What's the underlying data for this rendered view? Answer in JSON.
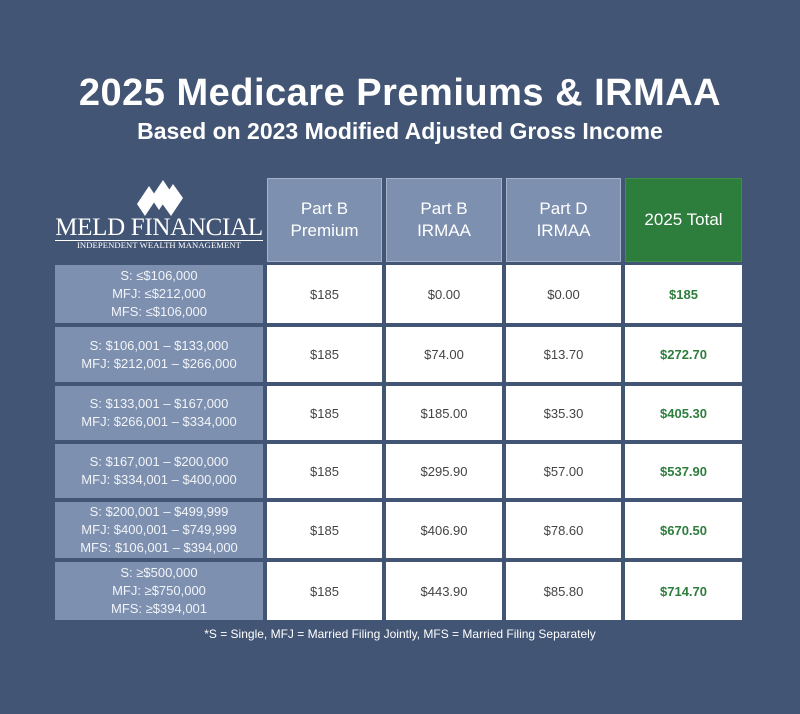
{
  "title": "2025 Medicare Premiums & IRMAA",
  "subtitle": "Based on 2023 Modified Adjusted Gross Income",
  "logo": {
    "name": "MELD FINANCIAL",
    "tagline": "INDEPENDENT WEALTH MANAGEMENT"
  },
  "colors": {
    "background": "#435574",
    "header": "#7d90b0",
    "total_header": "#2d7d3c",
    "total_text": "#2d7d3c"
  },
  "columns": [
    {
      "line1": "Part B",
      "line2": "Premium"
    },
    {
      "line1": "Part B",
      "line2": "IRMAA"
    },
    {
      "line1": "Part D",
      "line2": "IRMAA"
    },
    {
      "line1": "2025 Total",
      "line2": ""
    }
  ],
  "rows": [
    {
      "income": [
        "S: ≤$106,000",
        "MFJ: ≤$212,000",
        "MFS: ≤$106,000"
      ],
      "part_b_premium": "$185",
      "part_b_irmaa": "$0.00",
      "part_d_irmaa": "$0.00",
      "total": "$185"
    },
    {
      "income": [
        "S: $106,001 – $133,000",
        "MFJ: $212,001 – $266,000",
        ""
      ],
      "part_b_premium": "$185",
      "part_b_irmaa": "$74.00",
      "part_d_irmaa": "$13.70",
      "total": "$272.70"
    },
    {
      "income": [
        "S: $133,001 – $167,000",
        "MFJ: $266,001 – $334,000",
        ""
      ],
      "part_b_premium": "$185",
      "part_b_irmaa": "$185.00",
      "part_d_irmaa": "$35.30",
      "total": "$405.30"
    },
    {
      "income": [
        "S: $167,001 – $200,000",
        "MFJ: $334,001 – $400,000",
        ""
      ],
      "part_b_premium": "$185",
      "part_b_irmaa": "$295.90",
      "part_d_irmaa": "$57.00",
      "total": "$537.90"
    },
    {
      "income": [
        "S: $200,001 – $499,999",
        "MFJ: $400,001 – $749,999",
        "MFS: $106,001 – $394,000"
      ],
      "part_b_premium": "$185",
      "part_b_irmaa": "$406.90",
      "part_d_irmaa": "$78.60",
      "total": "$670.50"
    },
    {
      "income": [
        "S: ≥$500,000",
        "MFJ: ≥$750,000",
        "MFS: ≥$394,001"
      ],
      "part_b_premium": "$185",
      "part_b_irmaa": "$443.90",
      "part_d_irmaa": "$85.80",
      "total": "$714.70"
    }
  ],
  "footnote": "*S = Single, MFJ = Married Filing Jointly, MFS = Married Filing Separately"
}
